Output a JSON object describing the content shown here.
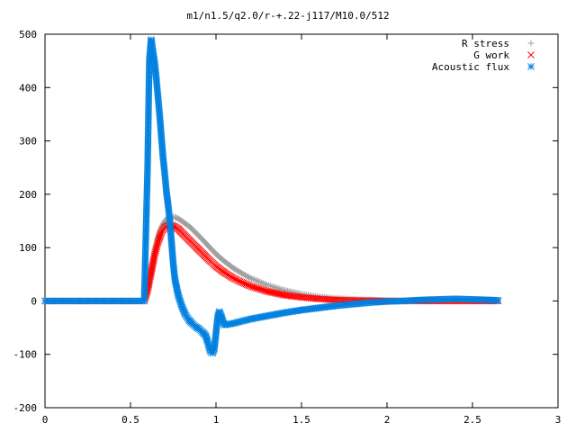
{
  "chart_data": {
    "type": "scatter",
    "title": "m1/n1.5/q2.0/r-+.22-j117/M10.0/512",
    "xlabel": "",
    "ylabel": "",
    "xlim": [
      0,
      3
    ],
    "ylim": [
      -200,
      500
    ],
    "x_ticks": [
      0,
      0.5,
      1,
      1.5,
      2,
      2.5,
      3
    ],
    "x_tick_labels": [
      "0",
      "0.5",
      "1",
      "1.5",
      "2",
      "2.5",
      "3"
    ],
    "y_ticks": [
      -200,
      -100,
      0,
      100,
      200,
      300,
      400,
      500
    ],
    "y_tick_labels": [
      "-200",
      "-100",
      "0",
      "100",
      "200",
      "300",
      "400",
      "500"
    ],
    "grid": false,
    "legend_position": "top-right",
    "series": [
      {
        "name": "R stress",
        "marker": "plus",
        "color": "#a0a0a0",
        "x": [
          0.0,
          0.1,
          0.2,
          0.3,
          0.4,
          0.5,
          0.58,
          0.6,
          0.62,
          0.64,
          0.66,
          0.68,
          0.7,
          0.72,
          0.74,
          0.76,
          0.78,
          0.8,
          0.85,
          0.9,
          0.95,
          1.0,
          1.05,
          1.1,
          1.15,
          1.2,
          1.3,
          1.4,
          1.5,
          1.6,
          1.7,
          1.8,
          1.9,
          2.0,
          2.1,
          2.2,
          2.3,
          2.4,
          2.5,
          2.6,
          2.65
        ],
        "y": [
          0,
          0,
          0,
          0,
          0,
          0,
          0,
          20,
          55,
          90,
          118,
          138,
          150,
          156,
          158,
          157,
          154,
          150,
          138,
          122,
          105,
          88,
          74,
          62,
          52,
          43,
          30,
          20,
          13,
          8,
          5,
          3,
          2,
          1,
          0.5,
          0.2,
          0,
          0,
          0,
          0,
          0
        ]
      },
      {
        "name": "G work",
        "marker": "cross",
        "color": "#ff0000",
        "x": [
          0.0,
          0.1,
          0.2,
          0.3,
          0.4,
          0.5,
          0.58,
          0.6,
          0.62,
          0.64,
          0.66,
          0.68,
          0.7,
          0.72,
          0.74,
          0.76,
          0.78,
          0.8,
          0.85,
          0.9,
          0.95,
          1.0,
          1.05,
          1.1,
          1.15,
          1.2,
          1.3,
          1.4,
          1.5,
          1.6,
          1.7,
          1.8,
          1.9,
          2.0,
          2.1,
          2.2,
          2.3,
          2.4,
          2.5,
          2.6,
          2.65
        ],
        "y": [
          0,
          0,
          0,
          0,
          0,
          0,
          0,
          20,
          52,
          85,
          110,
          128,
          138,
          142,
          142,
          139,
          135,
          128,
          112,
          96,
          80,
          65,
          53,
          43,
          35,
          28,
          18,
          11,
          7,
          4,
          2,
          1,
          0.5,
          0,
          0,
          0,
          0,
          0,
          0,
          0,
          0
        ]
      },
      {
        "name": "Acoustic flux",
        "marker": "star",
        "color": "#0080e0",
        "x": [
          0.0,
          0.1,
          0.2,
          0.3,
          0.4,
          0.5,
          0.58,
          0.6,
          0.61,
          0.62,
          0.625,
          0.63,
          0.64,
          0.65,
          0.66,
          0.67,
          0.68,
          0.69,
          0.7,
          0.71,
          0.72,
          0.73,
          0.74,
          0.75,
          0.76,
          0.78,
          0.8,
          0.82,
          0.84,
          0.86,
          0.88,
          0.9,
          0.92,
          0.94,
          0.95,
          0.96,
          0.97,
          0.98,
          0.99,
          1.0,
          1.01,
          1.02,
          1.03,
          1.04,
          1.05,
          1.1,
          1.15,
          1.2,
          1.3,
          1.4,
          1.5,
          1.6,
          1.7,
          1.8,
          1.9,
          2.0,
          2.1,
          2.2,
          2.3,
          2.4,
          2.5,
          2.6,
          2.65
        ],
        "y": [
          0,
          0,
          0,
          0,
          0,
          0,
          0,
          252,
          450,
          490,
          485,
          470,
          450,
          420,
          385,
          350,
          310,
          270,
          240,
          205,
          180,
          150,
          110,
          70,
          40,
          10,
          -10,
          -25,
          -35,
          -42,
          -48,
          -52,
          -58,
          -65,
          -75,
          -88,
          -96,
          -98,
          -90,
          -60,
          -30,
          -20,
          -28,
          -38,
          -45,
          -42,
          -38,
          -34,
          -28,
          -22,
          -17,
          -13,
          -9,
          -6,
          -3,
          -1,
          0,
          2,
          3,
          4,
          3,
          2,
          1
        ]
      }
    ]
  }
}
